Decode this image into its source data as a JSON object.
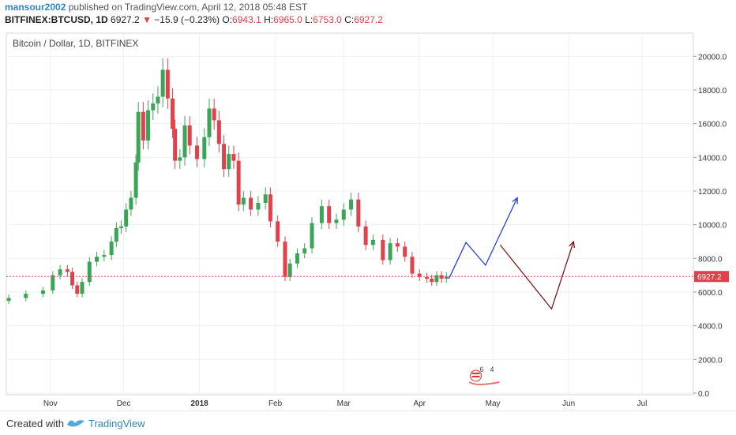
{
  "header": {
    "author": "mansour2002",
    "published_text": "published on TradingView.com, April 12, 2018 05:48 EST",
    "symbol": "BITFINEX:BTCUSD, 1D",
    "last": "6927.2",
    "arrow": "▼",
    "change": "−15.9 (−0.23%)",
    "o_label": "O:",
    "o_value": "6943.1",
    "h_label": "H:",
    "h_value": "6965.0",
    "l_label": "L:",
    "l_value": "6753.0",
    "c_label": "C:",
    "c_value": "6927.2"
  },
  "footer": {
    "created_with": "Created with",
    "brand": "TradingView"
  },
  "colors": {
    "up": "#3aa457",
    "down": "#e0414a",
    "grid": "#eef0f3",
    "price_line": "#e0414a",
    "projection_bull": "#2340e0",
    "projection_bear": "#7a1a1a",
    "accent": "#2e86c1"
  },
  "chart_data": {
    "type": "candlestick",
    "title": "Bitcoin / Dollar, 1D, BITFINEX",
    "xlabel": "",
    "ylabel": "",
    "ylim": [
      0,
      21000
    ],
    "y_ticks": [
      "20000.0",
      "18000.0",
      "16000.0",
      "14000.0",
      "12000.0",
      "10000.0",
      "8000.0",
      "6000.0",
      "4000.0",
      "2000.0",
      "0.0"
    ],
    "x_ticks": [
      {
        "date": "2017-11-01",
        "label": "Nov"
      },
      {
        "date": "2017-12-01",
        "label": "Dec"
      },
      {
        "date": "2018-01-01",
        "label": "2018"
      },
      {
        "date": "2018-02-01",
        "label": "Feb"
      },
      {
        "date": "2018-03-01",
        "label": "Mar"
      },
      {
        "date": "2018-04-01",
        "label": "Apr"
      },
      {
        "date": "2018-05-01",
        "label": "May"
      },
      {
        "date": "2018-06-01",
        "label": "Jun"
      },
      {
        "date": "2018-07-01",
        "label": "Jul"
      }
    ],
    "x_range": [
      "2017-10-14",
      "2018-07-22"
    ],
    "grid": true,
    "last_price": 6927.2,
    "last_price_label": "6927.2",
    "series": [
      {
        "date": "2017-10-15",
        "close": 5650
      },
      {
        "date": "2017-10-22",
        "close": 5900
      },
      {
        "date": "2017-10-29",
        "close": 6100
      },
      {
        "date": "2017-11-02",
        "close": 7000
      },
      {
        "date": "2017-11-05",
        "close": 7350
      },
      {
        "date": "2017-11-08",
        "close": 7200
      },
      {
        "date": "2017-11-10",
        "close": 6400
      },
      {
        "date": "2017-11-12",
        "close": 5900
      },
      {
        "date": "2017-11-14",
        "close": 6600
      },
      {
        "date": "2017-11-17",
        "close": 7800
      },
      {
        "date": "2017-11-20",
        "close": 8100
      },
      {
        "date": "2017-11-23",
        "close": 8200
      },
      {
        "date": "2017-11-26",
        "close": 9000
      },
      {
        "date": "2017-11-28",
        "close": 9800
      },
      {
        "date": "2017-11-30",
        "close": 9900
      },
      {
        "date": "2017-12-02",
        "close": 10900
      },
      {
        "date": "2017-12-04",
        "close": 11600
      },
      {
        "date": "2017-12-06",
        "close": 13700
      },
      {
        "date": "2017-12-07",
        "close": 16700
      },
      {
        "date": "2017-12-09",
        "close": 15000
      },
      {
        "date": "2017-12-11",
        "close": 16800
      },
      {
        "date": "2017-12-13",
        "close": 17200
      },
      {
        "date": "2017-12-15",
        "close": 17600
      },
      {
        "date": "2017-12-17",
        "close": 19200
      },
      {
        "date": "2017-12-19",
        "close": 17500
      },
      {
        "date": "2017-12-21",
        "close": 15700
      },
      {
        "date": "2017-12-22",
        "close": 13800
      },
      {
        "date": "2017-12-24",
        "close": 14000
      },
      {
        "date": "2017-12-26",
        "close": 15900
      },
      {
        "date": "2017-12-28",
        "close": 14700
      },
      {
        "date": "2017-12-31",
        "close": 13900
      },
      {
        "date": "2018-01-03",
        "close": 15200
      },
      {
        "date": "2018-01-05",
        "close": 16900
      },
      {
        "date": "2018-01-07",
        "close": 16200
      },
      {
        "date": "2018-01-09",
        "close": 14800
      },
      {
        "date": "2018-01-11",
        "close": 13300
      },
      {
        "date": "2018-01-13",
        "close": 14200
      },
      {
        "date": "2018-01-15",
        "close": 13800
      },
      {
        "date": "2018-01-17",
        "close": 11200
      },
      {
        "date": "2018-01-19",
        "close": 11600
      },
      {
        "date": "2018-01-22",
        "close": 10900
      },
      {
        "date": "2018-01-25",
        "close": 11300
      },
      {
        "date": "2018-01-28",
        "close": 11800
      },
      {
        "date": "2018-01-30",
        "close": 10200
      },
      {
        "date": "2018-02-02",
        "close": 9000
      },
      {
        "date": "2018-02-05",
        "close": 6900
      },
      {
        "date": "2018-02-07",
        "close": 7700
      },
      {
        "date": "2018-02-10",
        "close": 8300
      },
      {
        "date": "2018-02-13",
        "close": 8600
      },
      {
        "date": "2018-02-16",
        "close": 10100
      },
      {
        "date": "2018-02-20",
        "close": 11100
      },
      {
        "date": "2018-02-23",
        "close": 10100
      },
      {
        "date": "2018-02-26",
        "close": 10300
      },
      {
        "date": "2018-03-01",
        "close": 10900
      },
      {
        "date": "2018-03-04",
        "close": 11500
      },
      {
        "date": "2018-03-07",
        "close": 9900
      },
      {
        "date": "2018-03-10",
        "close": 8800
      },
      {
        "date": "2018-03-13",
        "close": 9100
      },
      {
        "date": "2018-03-17",
        "close": 7900
      },
      {
        "date": "2018-03-20",
        "close": 8900
      },
      {
        "date": "2018-03-23",
        "close": 8700
      },
      {
        "date": "2018-03-26",
        "close": 8100
      },
      {
        "date": "2018-03-29",
        "close": 7100
      },
      {
        "date": "2018-04-01",
        "close": 6900
      },
      {
        "date": "2018-04-04",
        "close": 6800
      },
      {
        "date": "2018-04-06",
        "close": 6600
      },
      {
        "date": "2018-04-08",
        "close": 7000
      },
      {
        "date": "2018-04-10",
        "close": 6800
      },
      {
        "date": "2018-04-12",
        "close": 6927.2
      }
    ],
    "projections": [
      {
        "name": "bullish",
        "points": [
          {
            "date": "2018-04-13",
            "y": 6800
          },
          {
            "date": "2018-04-20",
            "y": 8950
          },
          {
            "date": "2018-04-28",
            "y": 7600
          },
          {
            "date": "2018-05-11",
            "y": 11600
          }
        ]
      },
      {
        "name": "bearish",
        "points": [
          {
            "date": "2018-05-04",
            "y": 8800
          },
          {
            "date": "2018-05-25",
            "y": 5000
          },
          {
            "date": "2018-06-03",
            "y": 9000
          }
        ]
      }
    ],
    "event_badges": [
      "6",
      "4"
    ]
  }
}
